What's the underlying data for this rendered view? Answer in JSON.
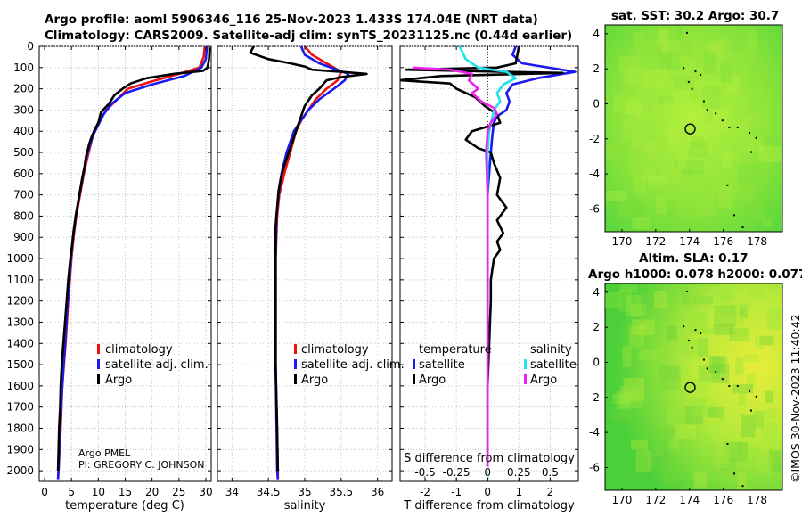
{
  "titles": {
    "line1": "Argo profile: aoml 5906346_116 25-Nov-2023 1.433S 174.04E (NRT data)",
    "line2": "Climatology: CARS2009. Satellite-adj clim: synTS_20231125.nc (0.44d earlier)",
    "sst_map": "sat. SST: 30.2 Argo: 30.7",
    "sla_map_1": "Altim. SLA: 0.17",
    "sla_map_2": "Argo h1000: 0.078 h2000: 0.077"
  },
  "credits": {
    "line1": "Argo PMEL",
    "line2": "PI: GREGORY C. JOHNSON"
  },
  "watermark": "©IMOS 30-Nov-2023 11:40:42",
  "colors": {
    "argo": "#000000",
    "climatology": "#ee1111",
    "satellite": "#1a1aee",
    "sat_salinity": "#22e0ee",
    "argo_salinity": "#ee22ee"
  },
  "chart_data": [
    {
      "type": "line",
      "name": "temperature-profile",
      "xlabel": "temperature (deg C)",
      "xlim": [
        -1,
        31
      ],
      "xticks": [
        0,
        5,
        10,
        15,
        20,
        25,
        30
      ],
      "ylim": [
        2050,
        0
      ],
      "yticks": [
        0,
        100,
        200,
        300,
        400,
        500,
        600,
        700,
        800,
        900,
        1000,
        1100,
        1200,
        1300,
        1400,
        1500,
        1600,
        1700,
        1800,
        1900,
        2000
      ],
      "legend": [
        "climatology",
        "satellite-adj. clim.",
        "Argo"
      ],
      "series": [
        {
          "name": "climatology",
          "color": "#ee1111",
          "points": [
            [
              29.8,
              0
            ],
            [
              29.6,
              50
            ],
            [
              28.8,
              100
            ],
            [
              25,
              130
            ],
            [
              20,
              165
            ],
            [
              15.5,
              200
            ],
            [
              13.5,
              250
            ],
            [
              11.5,
              300
            ],
            [
              10.2,
              350
            ],
            [
              9.2,
              400
            ],
            [
              8.2,
              500
            ],
            [
              7.3,
              600
            ],
            [
              6.6,
              700
            ],
            [
              5.9,
              800
            ],
            [
              5.4,
              900
            ],
            [
              5,
              1000
            ],
            [
              4.4,
              1200
            ],
            [
              3.9,
              1400
            ],
            [
              3.3,
              1600
            ],
            [
              3,
              1800
            ],
            [
              2.6,
              2000
            ],
            [
              2.5,
              2040
            ]
          ]
        },
        {
          "name": "satellite-adj. clim.",
          "color": "#1a1aee",
          "points": [
            [
              30.2,
              0
            ],
            [
              30,
              60
            ],
            [
              29.2,
              100
            ],
            [
              26,
              140
            ],
            [
              20,
              180
            ],
            [
              15,
              220
            ],
            [
              12.5,
              270
            ],
            [
              11,
              320
            ],
            [
              10,
              370
            ],
            [
              9,
              420
            ],
            [
              8,
              500
            ],
            [
              7.2,
              600
            ],
            [
              6.5,
              700
            ],
            [
              5.8,
              800
            ],
            [
              5.3,
              900
            ],
            [
              4.9,
              1000
            ],
            [
              4.3,
              1200
            ],
            [
              3.8,
              1400
            ],
            [
              3.3,
              1600
            ],
            [
              2.9,
              1800
            ],
            [
              2.6,
              2000
            ],
            [
              2.5,
              2040
            ]
          ]
        },
        {
          "name": "Argo",
          "color": "#000000",
          "points": [
            [
              30.7,
              5
            ],
            [
              30.6,
              60
            ],
            [
              30.3,
              100
            ],
            [
              29.5,
              115
            ],
            [
              24,
              130
            ],
            [
              19,
              150
            ],
            [
              16,
              175
            ],
            [
              14.5,
              200
            ],
            [
              13,
              230
            ],
            [
              12,
              270
            ],
            [
              10.5,
              310
            ],
            [
              10,
              360
            ],
            [
              9.2,
              400
            ],
            [
              8.7,
              430
            ],
            [
              8.3,
              460
            ],
            [
              7.7,
              520
            ],
            [
              7.4,
              570
            ],
            [
              7,
              620
            ],
            [
              6.6,
              680
            ],
            [
              6.2,
              740
            ],
            [
              5.8,
              800
            ],
            [
              5.4,
              870
            ],
            [
              5.1,
              940
            ],
            [
              4.8,
              1000
            ],
            [
              4.4,
              1100
            ],
            [
              4.1,
              1200
            ],
            [
              3.8,
              1300
            ],
            [
              3.5,
              1400
            ],
            [
              3.2,
              1500
            ],
            [
              3,
              1600
            ],
            [
              2.9,
              1700
            ],
            [
              2.7,
              1800
            ],
            [
              2.6,
              1900
            ],
            [
              2.5,
              2000
            ]
          ]
        }
      ]
    },
    {
      "type": "line",
      "name": "salinity-profile",
      "xlabel": "salinity",
      "xlim": [
        33.8,
        36.2
      ],
      "xticks": [
        34,
        34.5,
        35,
        35.5,
        36
      ],
      "xticklabels": [
        "34",
        "34.5",
        "35",
        "35.5",
        "36"
      ],
      "ylim": [
        2050,
        0
      ],
      "legend": [
        "climatology",
        "satellite-adj. clim.",
        "Argo"
      ],
      "series": [
        {
          "name": "climatology",
          "color": "#ee1111",
          "points": [
            [
              35.0,
              0
            ],
            [
              35.1,
              40
            ],
            [
              35.3,
              80
            ],
            [
              35.5,
              120
            ],
            [
              35.45,
              160
            ],
            [
              35.3,
              200
            ],
            [
              35.15,
              250
            ],
            [
              35.05,
              300
            ],
            [
              34.95,
              350
            ],
            [
              34.88,
              400
            ],
            [
              34.8,
              500
            ],
            [
              34.72,
              600
            ],
            [
              34.65,
              700
            ],
            [
              34.62,
              800
            ],
            [
              34.6,
              1000
            ],
            [
              34.6,
              1500
            ],
            [
              34.63,
              2000
            ],
            [
              34.63,
              2040
            ]
          ]
        },
        {
          "name": "satellite-adj. clim.",
          "color": "#1a1aee",
          "points": [
            [
              34.95,
              0
            ],
            [
              35.0,
              40
            ],
            [
              35.2,
              80
            ],
            [
              35.6,
              130
            ],
            [
              35.55,
              160
            ],
            [
              35.4,
              200
            ],
            [
              35.2,
              250
            ],
            [
              35.05,
              300
            ],
            [
              34.95,
              350
            ],
            [
              34.85,
              400
            ],
            [
              34.75,
              500
            ],
            [
              34.68,
              600
            ],
            [
              34.64,
              700
            ],
            [
              34.61,
              800
            ],
            [
              34.6,
              1000
            ],
            [
              34.6,
              1500
            ],
            [
              34.62,
              2000
            ],
            [
              34.63,
              2040
            ]
          ]
        },
        {
          "name": "Argo",
          "color": "#000000",
          "points": [
            [
              34.3,
              0
            ],
            [
              34.25,
              30
            ],
            [
              34.5,
              60
            ],
            [
              34.8,
              80
            ],
            [
              35.0,
              95
            ],
            [
              35.1,
              110
            ],
            [
              35.5,
              120
            ],
            [
              35.85,
              130
            ],
            [
              35.5,
              145
            ],
            [
              35.3,
              160
            ],
            [
              35.25,
              180
            ],
            [
              35.2,
              200
            ],
            [
              35.1,
              230
            ],
            [
              35.0,
              280
            ],
            [
              34.95,
              330
            ],
            [
              34.9,
              380
            ],
            [
              34.85,
              430
            ],
            [
              34.78,
              500
            ],
            [
              34.72,
              560
            ],
            [
              34.67,
              620
            ],
            [
              34.64,
              680
            ],
            [
              34.62,
              760
            ],
            [
              34.6,
              850
            ],
            [
              34.6,
              1000
            ],
            [
              34.6,
              1200
            ],
            [
              34.6,
              1500
            ],
            [
              34.62,
              1800
            ],
            [
              34.63,
              2000
            ]
          ]
        }
      ]
    },
    {
      "type": "line",
      "name": "difference-profile",
      "xlabel": "T difference from climatology",
      "xlabel_top": "S difference from climatology",
      "xlim": [
        -2.8,
        2.9
      ],
      "xticks": [
        -2,
        -1,
        0,
        1,
        2
      ],
      "xticks_top": [
        -0.5,
        -0.25,
        0,
        0.25,
        0.5
      ],
      "xticklabels_top": [
        "-0.5",
        "-0.25",
        "0",
        "0.25",
        "0.5"
      ],
      "s_scale": 4,
      "ylim": [
        2050,
        0
      ],
      "legend": [
        "temperature satellite",
        "temperature Argo",
        "salinity satellite",
        "salinity Argo"
      ],
      "series": [
        {
          "name": "T satellite",
          "color": "#1a1aee",
          "points": [
            [
              0.9,
              0
            ],
            [
              0.8,
              40
            ],
            [
              1.1,
              80
            ],
            [
              2.8,
              120
            ],
            [
              1.6,
              150
            ],
            [
              0.8,
              180
            ],
            [
              0.6,
              220
            ],
            [
              0.7,
              260
            ],
            [
              0.6,
              300
            ],
            [
              0.3,
              330
            ],
            [
              0.2,
              360
            ],
            [
              0.15,
              420
            ],
            [
              0.1,
              500
            ],
            [
              0.05,
              600
            ],
            [
              0.0,
              700
            ],
            [
              0.0,
              1000
            ],
            [
              0.0,
              2000
            ]
          ]
        },
        {
          "name": "T Argo",
          "color": "#000000",
          "points": [
            [
              1.0,
              0
            ],
            [
              0.9,
              80
            ],
            [
              0.3,
              100
            ],
            [
              -2.6,
              110
            ],
            [
              0.5,
              120
            ],
            [
              2.4,
              125
            ],
            [
              -1.5,
              140
            ],
            [
              -2.8,
              160
            ],
            [
              -1.2,
              175
            ],
            [
              -1.0,
              200
            ],
            [
              -0.4,
              240
            ],
            [
              -0.1,
              280
            ],
            [
              0.3,
              320
            ],
            [
              0.4,
              360
            ],
            [
              -0.5,
              400
            ],
            [
              -0.7,
              440
            ],
            [
              -0.3,
              480
            ],
            [
              0.1,
              500
            ],
            [
              0.2,
              550
            ],
            [
              0.4,
              620
            ],
            [
              0.3,
              700
            ],
            [
              0.6,
              760
            ],
            [
              0.3,
              820
            ],
            [
              0.5,
              880
            ],
            [
              0.3,
              920
            ],
            [
              0.4,
              960
            ],
            [
              0.2,
              1000
            ],
            [
              0.1,
              1100
            ],
            [
              0.1,
              1200
            ],
            [
              0.05,
              1400
            ],
            [
              0.0,
              1600
            ],
            [
              0.0,
              1800
            ],
            [
              0.0,
              2000
            ]
          ]
        },
        {
          "name": "S satellite",
          "color": "#22e0ee",
          "points": [
            [
              -0.9,
              0
            ],
            [
              -0.7,
              60
            ],
            [
              -0.3,
              100
            ],
            [
              0.6,
              120
            ],
            [
              0.9,
              150
            ],
            [
              0.5,
              180
            ],
            [
              0.3,
              220
            ],
            [
              0.4,
              260
            ],
            [
              0.2,
              300
            ],
            [
              0.05,
              400
            ],
            [
              0.0,
              500
            ],
            [
              0.0,
              1000
            ],
            [
              0.0,
              2040
            ]
          ]
        },
        {
          "name": "S Argo",
          "color": "#ee22ee",
          "points": [
            [
              -2.4,
              100
            ],
            [
              -1.2,
              110
            ],
            [
              -0.5,
              130
            ],
            [
              -0.6,
              160
            ],
            [
              -0.3,
              200
            ],
            [
              -0.5,
              220
            ],
            [
              -0.2,
              260
            ],
            [
              0.2,
              290
            ],
            [
              0.3,
              320
            ],
            [
              0.1,
              360
            ],
            [
              0.0,
              400
            ],
            [
              -0.05,
              500
            ],
            [
              0.0,
              700
            ],
            [
              0.0,
              1000
            ],
            [
              0.0,
              2000
            ]
          ]
        }
      ]
    },
    {
      "type": "heatmap",
      "name": "sst-map",
      "title": "sat. SST: 30.2 Argo: 30.7",
      "xlim": [
        169,
        179.5
      ],
      "ylim": [
        -7.3,
        4.5
      ],
      "xticks": [
        170,
        172,
        174,
        176,
        178
      ],
      "yticks": [
        -6,
        -4,
        -2,
        0,
        2,
        4
      ],
      "marker": {
        "lon": 174.04,
        "lat": -1.433
      }
    },
    {
      "type": "heatmap",
      "name": "sla-map",
      "title": "Altim. SLA: 0.17",
      "xlim": [
        169,
        179.5
      ],
      "ylim": [
        -7.3,
        4.5
      ],
      "xticks": [
        170,
        172,
        174,
        176,
        178
      ],
      "yticks": [
        -6,
        -4,
        -2,
        0,
        2,
        4
      ],
      "marker": {
        "lon": 174.04,
        "lat": -1.433
      }
    }
  ]
}
